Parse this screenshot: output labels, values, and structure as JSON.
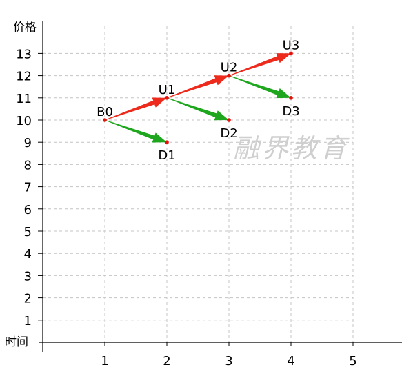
{
  "chart_data": {
    "type": "scatter",
    "xlabel": "时间",
    "ylabel": "价格",
    "xlim": [
      0,
      5.8
    ],
    "ylim": [
      0,
      13.7
    ],
    "x_ticks": [
      1,
      2,
      3,
      4,
      5
    ],
    "y_ticks": [
      1,
      2,
      3,
      4,
      5,
      6,
      7,
      8,
      9,
      10,
      11,
      12,
      13
    ],
    "grid": true,
    "points": [
      {
        "label": "B0",
        "x": 1,
        "y": 10
      },
      {
        "label": "U1",
        "x": 2,
        "y": 11
      },
      {
        "label": "D1",
        "x": 2,
        "y": 9
      },
      {
        "label": "U2",
        "x": 3,
        "y": 12
      },
      {
        "label": "D2",
        "x": 3,
        "y": 10
      },
      {
        "label": "U3",
        "x": 4,
        "y": 13
      },
      {
        "label": "D3",
        "x": 4,
        "y": 11
      }
    ],
    "arrows": [
      {
        "from": "B0",
        "to": "U1",
        "color": "#ee2a1c"
      },
      {
        "from": "B0",
        "to": "D1",
        "color": "#1fa61f"
      },
      {
        "from": "U1",
        "to": "U2",
        "color": "#ee2a1c"
      },
      {
        "from": "U1",
        "to": "D2",
        "color": "#1fa61f"
      },
      {
        "from": "U2",
        "to": "U3",
        "color": "#ee2a1c"
      },
      {
        "from": "U2",
        "to": "D3",
        "color": "#1fa61f"
      }
    ],
    "point_color": "#e8100a"
  },
  "watermark": "融界教育"
}
